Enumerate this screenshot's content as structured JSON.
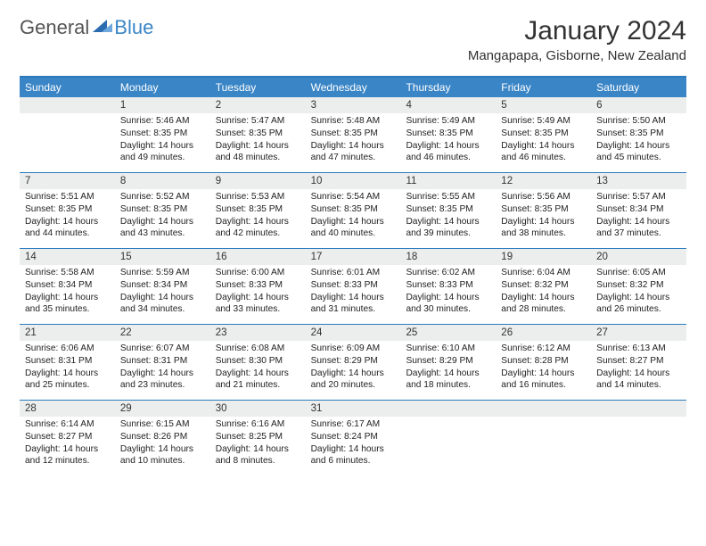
{
  "logo": {
    "general": "General",
    "blue": "Blue"
  },
  "title": "January 2024",
  "location": "Mangapapa, Gisborne, New Zealand",
  "colors": {
    "header_blue": "#3a85c6",
    "rule_blue": "#2b7bbd",
    "daynum_bg": "#eceded",
    "text": "#222222",
    "logo_gray": "#555555"
  },
  "daysOfWeek": [
    "Sunday",
    "Monday",
    "Tuesday",
    "Wednesday",
    "Thursday",
    "Friday",
    "Saturday"
  ],
  "weeks": [
    [
      {
        "blank": true
      },
      {
        "day": 1,
        "sunrise": "Sunrise: 5:46 AM",
        "sunset": "Sunset: 8:35 PM",
        "daylight1": "Daylight: 14 hours",
        "daylight2": "and 49 minutes."
      },
      {
        "day": 2,
        "sunrise": "Sunrise: 5:47 AM",
        "sunset": "Sunset: 8:35 PM",
        "daylight1": "Daylight: 14 hours",
        "daylight2": "and 48 minutes."
      },
      {
        "day": 3,
        "sunrise": "Sunrise: 5:48 AM",
        "sunset": "Sunset: 8:35 PM",
        "daylight1": "Daylight: 14 hours",
        "daylight2": "and 47 minutes."
      },
      {
        "day": 4,
        "sunrise": "Sunrise: 5:49 AM",
        "sunset": "Sunset: 8:35 PM",
        "daylight1": "Daylight: 14 hours",
        "daylight2": "and 46 minutes."
      },
      {
        "day": 5,
        "sunrise": "Sunrise: 5:49 AM",
        "sunset": "Sunset: 8:35 PM",
        "daylight1": "Daylight: 14 hours",
        "daylight2": "and 46 minutes."
      },
      {
        "day": 6,
        "sunrise": "Sunrise: 5:50 AM",
        "sunset": "Sunset: 8:35 PM",
        "daylight1": "Daylight: 14 hours",
        "daylight2": "and 45 minutes."
      }
    ],
    [
      {
        "day": 7,
        "sunrise": "Sunrise: 5:51 AM",
        "sunset": "Sunset: 8:35 PM",
        "daylight1": "Daylight: 14 hours",
        "daylight2": "and 44 minutes."
      },
      {
        "day": 8,
        "sunrise": "Sunrise: 5:52 AM",
        "sunset": "Sunset: 8:35 PM",
        "daylight1": "Daylight: 14 hours",
        "daylight2": "and 43 minutes."
      },
      {
        "day": 9,
        "sunrise": "Sunrise: 5:53 AM",
        "sunset": "Sunset: 8:35 PM",
        "daylight1": "Daylight: 14 hours",
        "daylight2": "and 42 minutes."
      },
      {
        "day": 10,
        "sunrise": "Sunrise: 5:54 AM",
        "sunset": "Sunset: 8:35 PM",
        "daylight1": "Daylight: 14 hours",
        "daylight2": "and 40 minutes."
      },
      {
        "day": 11,
        "sunrise": "Sunrise: 5:55 AM",
        "sunset": "Sunset: 8:35 PM",
        "daylight1": "Daylight: 14 hours",
        "daylight2": "and 39 minutes."
      },
      {
        "day": 12,
        "sunrise": "Sunrise: 5:56 AM",
        "sunset": "Sunset: 8:35 PM",
        "daylight1": "Daylight: 14 hours",
        "daylight2": "and 38 minutes."
      },
      {
        "day": 13,
        "sunrise": "Sunrise: 5:57 AM",
        "sunset": "Sunset: 8:34 PM",
        "daylight1": "Daylight: 14 hours",
        "daylight2": "and 37 minutes."
      }
    ],
    [
      {
        "day": 14,
        "sunrise": "Sunrise: 5:58 AM",
        "sunset": "Sunset: 8:34 PM",
        "daylight1": "Daylight: 14 hours",
        "daylight2": "and 35 minutes."
      },
      {
        "day": 15,
        "sunrise": "Sunrise: 5:59 AM",
        "sunset": "Sunset: 8:34 PM",
        "daylight1": "Daylight: 14 hours",
        "daylight2": "and 34 minutes."
      },
      {
        "day": 16,
        "sunrise": "Sunrise: 6:00 AM",
        "sunset": "Sunset: 8:33 PM",
        "daylight1": "Daylight: 14 hours",
        "daylight2": "and 33 minutes."
      },
      {
        "day": 17,
        "sunrise": "Sunrise: 6:01 AM",
        "sunset": "Sunset: 8:33 PM",
        "daylight1": "Daylight: 14 hours",
        "daylight2": "and 31 minutes."
      },
      {
        "day": 18,
        "sunrise": "Sunrise: 6:02 AM",
        "sunset": "Sunset: 8:33 PM",
        "daylight1": "Daylight: 14 hours",
        "daylight2": "and 30 minutes."
      },
      {
        "day": 19,
        "sunrise": "Sunrise: 6:04 AM",
        "sunset": "Sunset: 8:32 PM",
        "daylight1": "Daylight: 14 hours",
        "daylight2": "and 28 minutes."
      },
      {
        "day": 20,
        "sunrise": "Sunrise: 6:05 AM",
        "sunset": "Sunset: 8:32 PM",
        "daylight1": "Daylight: 14 hours",
        "daylight2": "and 26 minutes."
      }
    ],
    [
      {
        "day": 21,
        "sunrise": "Sunrise: 6:06 AM",
        "sunset": "Sunset: 8:31 PM",
        "daylight1": "Daylight: 14 hours",
        "daylight2": "and 25 minutes."
      },
      {
        "day": 22,
        "sunrise": "Sunrise: 6:07 AM",
        "sunset": "Sunset: 8:31 PM",
        "daylight1": "Daylight: 14 hours",
        "daylight2": "and 23 minutes."
      },
      {
        "day": 23,
        "sunrise": "Sunrise: 6:08 AM",
        "sunset": "Sunset: 8:30 PM",
        "daylight1": "Daylight: 14 hours",
        "daylight2": "and 21 minutes."
      },
      {
        "day": 24,
        "sunrise": "Sunrise: 6:09 AM",
        "sunset": "Sunset: 8:29 PM",
        "daylight1": "Daylight: 14 hours",
        "daylight2": "and 20 minutes."
      },
      {
        "day": 25,
        "sunrise": "Sunrise: 6:10 AM",
        "sunset": "Sunset: 8:29 PM",
        "daylight1": "Daylight: 14 hours",
        "daylight2": "and 18 minutes."
      },
      {
        "day": 26,
        "sunrise": "Sunrise: 6:12 AM",
        "sunset": "Sunset: 8:28 PM",
        "daylight1": "Daylight: 14 hours",
        "daylight2": "and 16 minutes."
      },
      {
        "day": 27,
        "sunrise": "Sunrise: 6:13 AM",
        "sunset": "Sunset: 8:27 PM",
        "daylight1": "Daylight: 14 hours",
        "daylight2": "and 14 minutes."
      }
    ],
    [
      {
        "day": 28,
        "sunrise": "Sunrise: 6:14 AM",
        "sunset": "Sunset: 8:27 PM",
        "daylight1": "Daylight: 14 hours",
        "daylight2": "and 12 minutes."
      },
      {
        "day": 29,
        "sunrise": "Sunrise: 6:15 AM",
        "sunset": "Sunset: 8:26 PM",
        "daylight1": "Daylight: 14 hours",
        "daylight2": "and 10 minutes."
      },
      {
        "day": 30,
        "sunrise": "Sunrise: 6:16 AM",
        "sunset": "Sunset: 8:25 PM",
        "daylight1": "Daylight: 14 hours",
        "daylight2": "and 8 minutes."
      },
      {
        "day": 31,
        "sunrise": "Sunrise: 6:17 AM",
        "sunset": "Sunset: 8:24 PM",
        "daylight1": "Daylight: 14 hours",
        "daylight2": "and 6 minutes."
      },
      {
        "blank": true
      },
      {
        "blank": true
      },
      {
        "blank": true
      }
    ]
  ]
}
